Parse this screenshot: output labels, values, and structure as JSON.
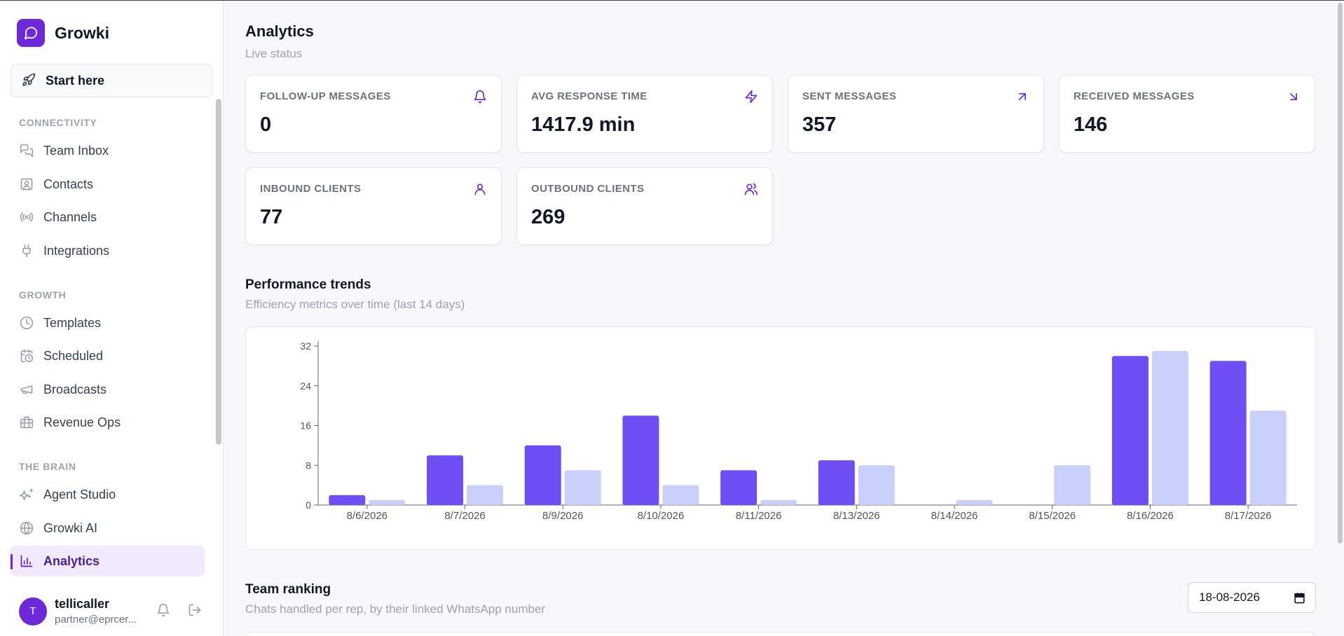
{
  "brand": {
    "name": "Growki"
  },
  "sidebar": {
    "start_here": "Start here",
    "sections": [
      {
        "title": "CONNECTIVITY",
        "items": [
          "Team Inbox",
          "Contacts",
          "Channels",
          "Integrations"
        ]
      },
      {
        "title": "GROWTH",
        "items": [
          "Templates",
          "Scheduled",
          "Broadcasts",
          "Revenue Ops"
        ]
      },
      {
        "title": "THE BRAIN",
        "items": [
          "Agent Studio",
          "Growki AI",
          "Analytics"
        ]
      }
    ],
    "active_item": "Analytics"
  },
  "user": {
    "initial": "T",
    "name": "tellicaller",
    "email": "partner@eprcer..."
  },
  "header": {
    "title": "Analytics",
    "subtitle": "Live status"
  },
  "stats": [
    {
      "label": "FOLLOW-UP MESSAGES",
      "value": "0",
      "icon": "bell-icon"
    },
    {
      "label": "AVG RESPONSE TIME",
      "value": "1417.9 min",
      "icon": "lightning-icon"
    },
    {
      "label": "SENT MESSAGES",
      "value": "357",
      "icon": "arrow-up-right-icon"
    },
    {
      "label": "RECEIVED MESSAGES",
      "value": "146",
      "icon": "arrow-down-right-icon"
    },
    {
      "label": "INBOUND CLIENTS",
      "value": "77",
      "icon": "user-icon"
    },
    {
      "label": "OUTBOUND CLIENTS",
      "value": "269",
      "icon": "users-icon"
    }
  ],
  "performance": {
    "title": "Performance trends",
    "subtitle": "Efficiency metrics over time (last 14 days)"
  },
  "team_ranking": {
    "title": "Team ranking",
    "subtitle": "Chats handled per rep, by their linked WhatsApp number",
    "date_value": "18-08-2026"
  },
  "colors": {
    "accent": "#6d28d9",
    "series_1": "#6f4ef6",
    "series_2": "#c8d0fb"
  },
  "chart_data": {
    "type": "bar",
    "categories": [
      "8/6/2026",
      "8/7/2026",
      "8/9/2026",
      "8/10/2026",
      "8/11/2026",
      "8/13/2026",
      "8/14/2026",
      "8/15/2026",
      "8/16/2026",
      "8/17/2026"
    ],
    "series": [
      {
        "values": [
          2,
          10,
          12,
          18,
          7,
          9,
          0,
          0,
          30,
          29
        ]
      },
      {
        "values": [
          1,
          4,
          7,
          4,
          1,
          8,
          1,
          8,
          31,
          19
        ]
      }
    ],
    "yticks": [
      0,
      8,
      16,
      24,
      32
    ],
    "ylim": [
      0,
      32
    ],
    "grid": false,
    "legend": "none"
  }
}
